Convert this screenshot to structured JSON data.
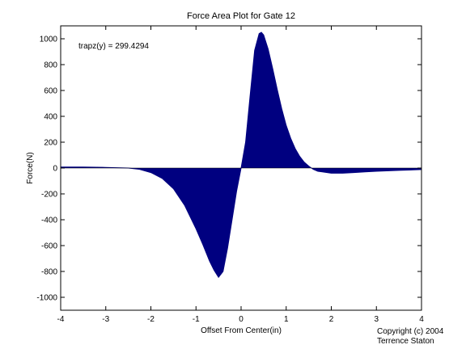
{
  "chart_data": {
    "type": "area",
    "title": "Force Area Plot for Gate 12",
    "xlabel": "Offset From Center(in)",
    "ylabel": "Force(N)",
    "xlim": [
      -4,
      4
    ],
    "ylim": [
      -1100,
      1100
    ],
    "xticks": [
      -4,
      -3,
      -2,
      -1,
      0,
      1,
      2,
      3,
      4
    ],
    "yticks": [
      1000,
      800,
      600,
      400,
      200,
      0,
      -200,
      -400,
      -600,
      -800,
      -1000
    ],
    "grid": false,
    "annotation": "trapz(y) = 299.4294",
    "fill_color": "#000080",
    "x": [
      -4.0,
      -3.5,
      -3.0,
      -2.5,
      -2.25,
      -2.0,
      -1.75,
      -1.5,
      -1.25,
      -1.0,
      -0.85,
      -0.7,
      -0.6,
      -0.5,
      -0.4,
      -0.3,
      -0.2,
      -0.1,
      0.0,
      0.1,
      0.2,
      0.3,
      0.4,
      0.45,
      0.5,
      0.6,
      0.7,
      0.8,
      0.9,
      1.0,
      1.1,
      1.2,
      1.3,
      1.4,
      1.5,
      1.6,
      1.7,
      1.8,
      2.0,
      2.25,
      2.5,
      2.75,
      3.0,
      3.5,
      4.0
    ],
    "y": [
      8,
      8,
      5,
      0,
      -10,
      -35,
      -80,
      -160,
      -290,
      -470,
      -590,
      -720,
      -790,
      -845,
      -800,
      -620,
      -400,
      -180,
      0,
      200,
      560,
      910,
      1040,
      1050,
      1030,
      920,
      770,
      610,
      460,
      330,
      230,
      150,
      90,
      45,
      15,
      -10,
      -25,
      -30,
      -40,
      -40,
      -35,
      -30,
      -25,
      -18,
      -12
    ]
  },
  "footer": {
    "copyright": "Copyright (c) 2004",
    "author": "Terrence Staton"
  }
}
